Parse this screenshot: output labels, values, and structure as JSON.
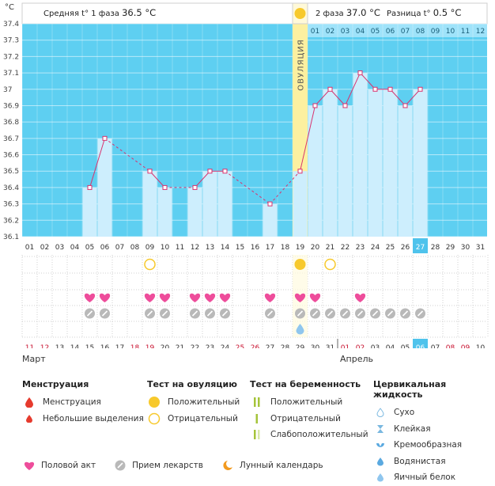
{
  "header": {
    "celsius_unit": "°C",
    "phase1_avg_label": "Средняя t° 1 фаза",
    "phase1_avg_value": "36.5 °C",
    "phase2_label": "2 фаза",
    "phase2_value": "37.0 °C",
    "diff_label": "Разница t°",
    "diff_value": "0.5 °C"
  },
  "chart_data": {
    "type": "line",
    "title": "",
    "ylabel": "°C",
    "ylim": [
      36.1,
      37.4
    ],
    "y_ticks": [
      "36.1",
      "36.2",
      "36.3",
      "36.4",
      "36.5",
      "36.6",
      "36.7",
      "36.8",
      "36.9",
      "37",
      "37.1",
      "37.2",
      "37.3",
      "37.4"
    ],
    "days": [
      "01",
      "02",
      "03",
      "04",
      "05",
      "06",
      "07",
      "08",
      "09",
      "10",
      "11",
      "12",
      "13",
      "14",
      "15",
      "16",
      "17",
      "18",
      "19",
      "20",
      "21",
      "22",
      "23",
      "24",
      "25",
      "26",
      "27",
      "28",
      "29",
      "30",
      "31"
    ],
    "temperatures": [
      null,
      null,
      null,
      null,
      36.4,
      36.7,
      null,
      null,
      36.5,
      36.4,
      null,
      36.4,
      36.5,
      36.5,
      null,
      null,
      36.3,
      null,
      36.5,
      36.9,
      37.0,
      36.9,
      37.1,
      37.0,
      37.0,
      36.9,
      37.0,
      null,
      null,
      null,
      null
    ],
    "ovulation_day": "19",
    "ovulation_label": "ОВУЛЯЦИЯ",
    "phase2_days": [
      "01",
      "02",
      "03",
      "04",
      "05",
      "06",
      "07",
      "08",
      "09",
      "10",
      "11",
      "12"
    ],
    "current_day": "27"
  },
  "symbols": {
    "ovulation_test_positive": [
      "19"
    ],
    "ovulation_test_negative": [
      "09",
      "21"
    ],
    "intercourse": [
      "05",
      "06",
      "09",
      "10",
      "12",
      "13",
      "14",
      "17",
      "19",
      "20",
      "23"
    ],
    "medication": [
      "05",
      "06",
      "09",
      "10",
      "12",
      "13",
      "14",
      "17",
      "19",
      "20",
      "21",
      "22",
      "23",
      "24",
      "25",
      "26",
      "27"
    ],
    "cervical_egg_white": [
      "19"
    ]
  },
  "calendar": {
    "dates": [
      {
        "t": "11",
        "w": true
      },
      {
        "t": "12",
        "w": true
      },
      {
        "t": "13",
        "w": false
      },
      {
        "t": "14",
        "w": false
      },
      {
        "t": "15",
        "w": false
      },
      {
        "t": "16",
        "w": false
      },
      {
        "t": "17",
        "w": false
      },
      {
        "t": "18",
        "w": true
      },
      {
        "t": "19",
        "w": true
      },
      {
        "t": "20",
        "w": false
      },
      {
        "t": "21",
        "w": false
      },
      {
        "t": "22",
        "w": false
      },
      {
        "t": "23",
        "w": false
      },
      {
        "t": "24",
        "w": false
      },
      {
        "t": "25",
        "w": true
      },
      {
        "t": "26",
        "w": true
      },
      {
        "t": "27",
        "w": false
      },
      {
        "t": "28",
        "w": false
      },
      {
        "t": "29",
        "w": false
      },
      {
        "t": "30",
        "w": false
      },
      {
        "t": "31",
        "w": false
      },
      {
        "t": "01",
        "w": true
      },
      {
        "t": "02",
        "w": true
      },
      {
        "t": "03",
        "w": false
      },
      {
        "t": "04",
        "w": false
      },
      {
        "t": "05",
        "w": false
      },
      {
        "t": "06",
        "w": false
      },
      {
        "t": "07",
        "w": false
      },
      {
        "t": "08",
        "w": true
      },
      {
        "t": "09",
        "w": true
      },
      {
        "t": "10",
        "w": false
      }
    ],
    "current_date": "06",
    "month1": "Март",
    "month2": "Апрель"
  },
  "legend": {
    "menstruation": {
      "title": "Менструация",
      "items": [
        "Менструация",
        "Небольшие выделения"
      ]
    },
    "ovulation_test": {
      "title": "Тест на овуляцию",
      "items": [
        "Положительный",
        "Отрицательный"
      ]
    },
    "pregnancy_test": {
      "title": "Тест на беременность",
      "items": [
        "Положительный",
        "Отрицательный",
        "Слабоположительный"
      ]
    },
    "cervical": {
      "title": "Цервикальная жидкость",
      "items": [
        "Сухо",
        "Клейкая",
        "Кремообразная",
        "Водянистая",
        "Яичный белок"
      ]
    },
    "bottom": [
      "Половой акт",
      "Прием лекарств",
      "Лунный календарь"
    ]
  },
  "colors": {
    "sky": "#5ecff1",
    "bar": "#cdeefd",
    "line": "#d8336f",
    "ovulation": "#fcf0a0",
    "yellow": "#f7c92c",
    "heart": "#ee4d9b",
    "pill": "#b9b9b9",
    "weekend": "#c8102e",
    "current": "#4fc3ec"
  }
}
